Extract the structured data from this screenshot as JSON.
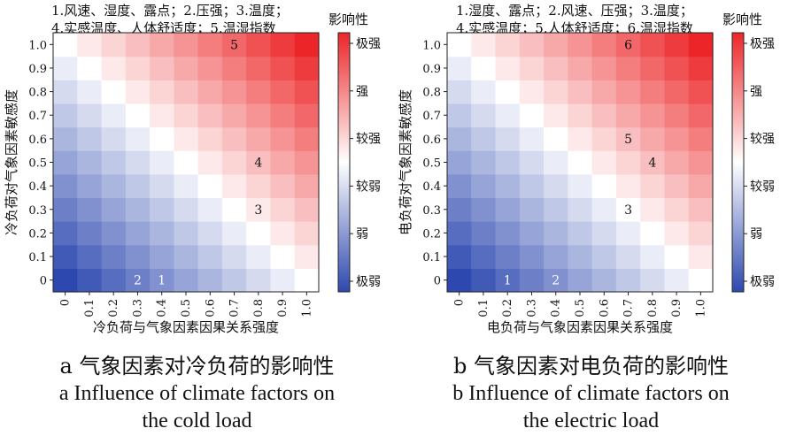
{
  "chart_data": [
    {
      "type": "heatmap",
      "id": "left",
      "title_lines": [
        "1.风速、湿度、露点；2.压强；3.温度；",
        "4.实感温度、人体舒适度；5.温湿指数"
      ],
      "xlabel": "冷负荷与气象因素因果关系强度",
      "ylabel": "冷负荷对气象因素敏感度",
      "x_ticks": [
        "0",
        "0.1",
        "0.2",
        "0.3",
        "0.4",
        "0.5",
        "0.6",
        "0.7",
        "0.8",
        "0.9",
        "1.0"
      ],
      "y_ticks": [
        "0",
        "0.1",
        "0.2",
        "0.3",
        "0.4",
        "0.5",
        "0.6",
        "0.7",
        "0.8",
        "0.9",
        "1.0"
      ],
      "xlim": [
        0,
        1
      ],
      "ylim": [
        0,
        1
      ],
      "colorbar_title": "影响性",
      "colorbar_labels": [
        "极强",
        "强",
        "较强",
        "较弱",
        "弱",
        "极弱"
      ],
      "annotations": [
        {
          "label": "5",
          "x": 0.7,
          "y": 1.0
        },
        {
          "label": "4",
          "x": 0.8,
          "y": 0.5
        },
        {
          "label": "3",
          "x": 0.8,
          "y": 0.3
        },
        {
          "label": "2",
          "x": 0.3,
          "y": 0.0
        },
        {
          "label": "1",
          "x": 0.4,
          "y": 0.0
        }
      ],
      "caption_zh": "a  气象因素对冷负荷的影响性",
      "caption_en_1": "a  Influence of climate factors on",
      "caption_en_2": "the cold load"
    },
    {
      "type": "heatmap",
      "id": "right",
      "title_lines": [
        "1.湿度、露点；2.风速、压强；3.温度；",
        "4.实感温度；5.人体舒适度；6.温湿指数"
      ],
      "xlabel": "电负荷与气象因素因果关系强度",
      "ylabel": "电负荷对气象因素敏感度",
      "x_ticks": [
        "0",
        "0.1",
        "0.2",
        "0.3",
        "0.4",
        "0.5",
        "0.6",
        "0.7",
        "0.8",
        "0.9",
        "1.0"
      ],
      "y_ticks": [
        "0",
        "0.1",
        "0.2",
        "0.3",
        "0.4",
        "0.5",
        "0.6",
        "0.7",
        "0.8",
        "0.9",
        "1.0"
      ],
      "xlim": [
        0,
        1
      ],
      "ylim": [
        0,
        1
      ],
      "colorbar_title": "影响性",
      "colorbar_labels": [
        "极强",
        "强",
        "较强",
        "较弱",
        "弱",
        "极弱"
      ],
      "annotations": [
        {
          "label": "6",
          "x": 0.7,
          "y": 1.0
        },
        {
          "label": "5",
          "x": 0.7,
          "y": 0.6
        },
        {
          "label": "4",
          "x": 0.8,
          "y": 0.5
        },
        {
          "label": "3",
          "x": 0.7,
          "y": 0.3
        },
        {
          "label": "2",
          "x": 0.4,
          "y": 0.0
        },
        {
          "label": "1",
          "x": 0.2,
          "y": 0.0
        }
      ],
      "caption_zh": "b  气象因素对电负荷的影响性",
      "caption_en_1": "b  Influence of climate factors on",
      "caption_en_2": "the electric load"
    }
  ]
}
